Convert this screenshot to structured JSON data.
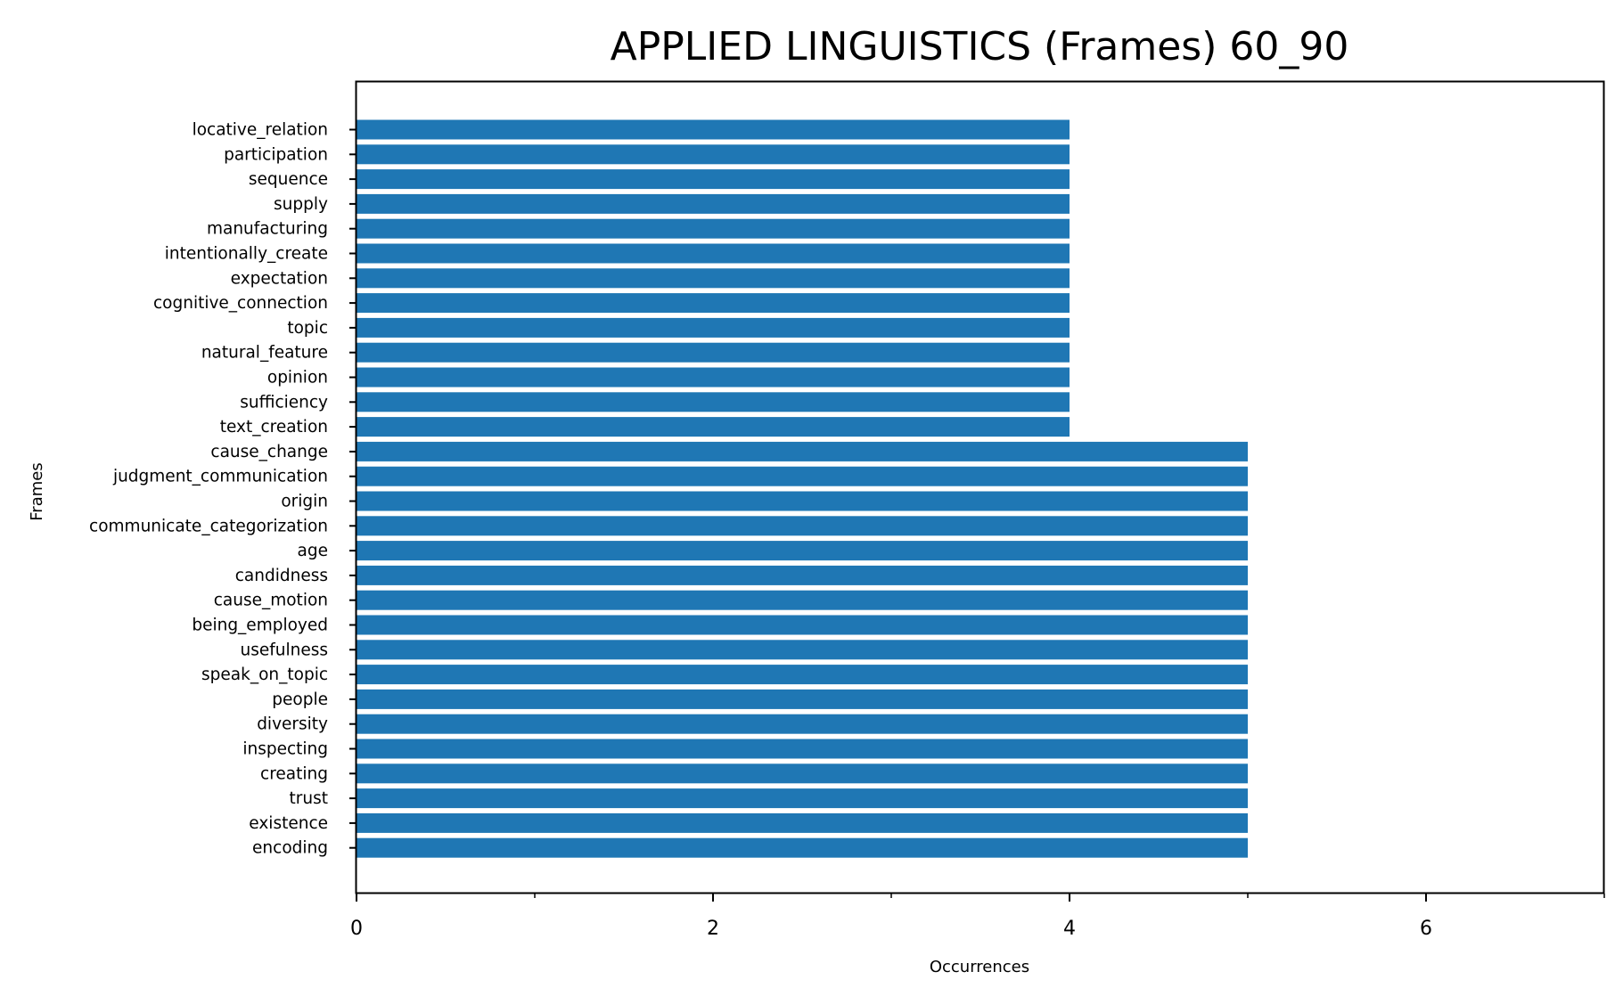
{
  "chart_data": {
    "type": "bar",
    "orientation": "horizontal",
    "title": "APPLIED LINGUISTICS (Frames) 60_90",
    "xlabel": "Occurrences",
    "ylabel": "Frames",
    "xlim": [
      0,
      7
    ],
    "xticks": [
      0,
      2,
      4,
      6
    ],
    "xticks_minor": [
      1,
      3,
      5,
      7
    ],
    "grid": false,
    "bar_color": "#1f77b4",
    "categories": [
      "locative_relation",
      "participation",
      "sequence",
      "supply",
      "manufacturing",
      "intentionally_create",
      "expectation",
      "cognitive_connection",
      "topic",
      "natural_feature",
      "opinion",
      "sufficiency",
      "text_creation",
      "cause_change",
      "judgment_communication",
      "origin",
      "communicate_categorization",
      "age",
      "candidness",
      "cause_motion",
      "being_employed",
      "usefulness",
      "speak_on_topic",
      "people",
      "diversity",
      "inspecting",
      "creating",
      "trust",
      "existence",
      "encoding"
    ],
    "values": [
      4,
      4,
      4,
      4,
      4,
      4,
      4,
      4,
      4,
      4,
      4,
      4,
      4,
      5,
      5,
      5,
      5,
      5,
      5,
      5,
      5,
      5,
      5,
      5,
      5,
      5,
      5,
      5,
      5,
      5
    ]
  }
}
